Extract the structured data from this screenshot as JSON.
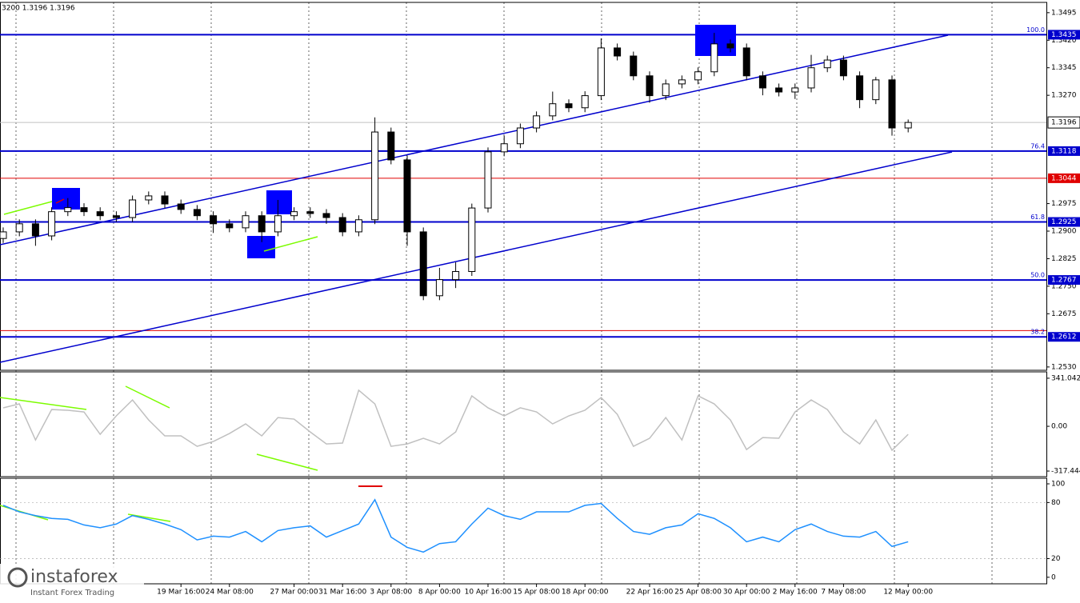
{
  "chart_data": [
    {
      "type": "candlestick",
      "title": "3200 1.3196 1.3196",
      "categories": [
        null,
        null,
        null,
        null,
        null,
        null,
        null,
        null,
        null,
        null,
        null,
        "19 Mar 16:00",
        null,
        null,
        "24 Mar 08:00",
        null,
        null,
        null,
        "27 Mar 00:00",
        null,
        null,
        "31 Mar 16:00",
        null,
        null,
        "3 Apr 08:00",
        null,
        null,
        "8 Apr 00:00",
        null,
        null,
        "10 Apr 16:00",
        null,
        null,
        "15 Apr 08:00",
        null,
        null,
        "18 Apr 00:00",
        null,
        null,
        null,
        "22 Apr 16:00",
        null,
        null,
        "25 Apr 08:00",
        null,
        null,
        "30 Apr 00:00",
        null,
        null,
        "2 May 16:00",
        null,
        null,
        "7 May 08:00",
        null,
        null,
        null,
        "12 May 00:00"
      ],
      "open": [
        1.288,
        1.2898,
        1.292,
        1.2887,
        1.2953,
        1.2964,
        1.2953,
        1.2942,
        1.2937,
        1.2985,
        1.2996,
        1.2974,
        1.2959,
        1.2942,
        1.292,
        1.2909,
        1.2942,
        1.2898,
        1.2942,
        1.2953,
        1.2948,
        1.2937,
        1.2898,
        1.2931,
        1.317,
        1.3094,
        1.2898,
        1.2724,
        1.2768,
        1.279,
        1.2963,
        1.3116,
        1.3138,
        1.3181,
        1.3214,
        1.3247,
        1.3236,
        1.3269,
        1.3399,
        1.3377,
        1.3323,
        1.3269,
        1.3301,
        1.3312,
        1.3334,
        1.341,
        1.3399,
        1.3323,
        1.329,
        1.3279,
        1.329,
        1.3345,
        1.3366,
        1.3323,
        1.3258,
        1.3312,
        1.3181
      ],
      "high": [
        1.291,
        1.2932,
        1.2932,
        1.2965,
        1.299,
        1.2976,
        1.2965,
        1.2954,
        1.2997,
        1.3008,
        1.3008,
        1.2986,
        1.2971,
        1.2954,
        1.2932,
        1.2954,
        1.2954,
        1.2985,
        1.2965,
        1.2965,
        1.296,
        1.2949,
        1.2943,
        1.321,
        1.3182,
        1.3106,
        1.291,
        1.28,
        1.2815,
        1.2975,
        1.3128,
        1.316,
        1.3193,
        1.3226,
        1.328,
        1.3259,
        1.3281,
        1.3425,
        1.3411,
        1.3389,
        1.3335,
        1.3313,
        1.3324,
        1.3346,
        1.344,
        1.3422,
        1.3411,
        1.3335,
        1.3302,
        1.3302,
        1.338,
        1.3378,
        1.3378,
        1.3335,
        1.332,
        1.3324,
        1.3204
      ],
      "low": [
        1.2868,
        1.2886,
        1.286,
        1.2875,
        1.2941,
        1.2941,
        1.293,
        1.2925,
        1.2925,
        1.2973,
        1.2962,
        1.2947,
        1.293,
        1.2895,
        1.2897,
        1.2897,
        1.287,
        1.2886,
        1.293,
        1.2936,
        1.292,
        1.2886,
        1.2886,
        1.2919,
        1.3082,
        1.286,
        1.2712,
        1.2712,
        1.2745,
        1.2778,
        1.2951,
        1.3104,
        1.3126,
        1.3169,
        1.3202,
        1.3224,
        1.3224,
        1.3257,
        1.3365,
        1.3311,
        1.325,
        1.3257,
        1.3289,
        1.33,
        1.3322,
        1.3387,
        1.3311,
        1.327,
        1.3267,
        1.326,
        1.3278,
        1.3333,
        1.3311,
        1.3235,
        1.3246,
        1.316,
        1.3169
      ],
      "close": [
        1.2898,
        1.292,
        1.2887,
        1.2953,
        1.2964,
        1.2953,
        1.2942,
        1.2937,
        1.2985,
        1.2996,
        1.2974,
        1.2959,
        1.2942,
        1.292,
        1.2909,
        1.2942,
        1.2898,
        1.2942,
        1.2953,
        1.2948,
        1.2937,
        1.2898,
        1.2931,
        1.317,
        1.3094,
        1.2898,
        1.2724,
        1.2768,
        1.279,
        1.2963,
        1.3116,
        1.3138,
        1.3181,
        1.3214,
        1.3247,
        1.3236,
        1.3269,
        1.3399,
        1.3377,
        1.3323,
        1.3269,
        1.3301,
        1.3312,
        1.3334,
        1.341,
        1.3399,
        1.3323,
        1.329,
        1.3279,
        1.329,
        1.3345,
        1.3366,
        1.3323,
        1.3258,
        1.3312,
        1.3181,
        1.3196
      ],
      "ylim": [
        1.2521,
        1.3523
      ],
      "yticks": [
        {
          "value": 1.3495,
          "label": "1.3495"
        },
        {
          "value": 1.342,
          "label": "1.3420"
        },
        {
          "value": 1.3345,
          "label": "1.3345"
        },
        {
          "value": 1.327,
          "label": "1.3270"
        },
        {
          "value": 1.2975,
          "label": "1.2975"
        },
        {
          "value": 1.29,
          "label": "1.2900"
        },
        {
          "value": 1.2825,
          "label": "1.2825"
        },
        {
          "value": 1.275,
          "label": "1.2750"
        },
        {
          "value": 1.2675,
          "label": "1.2675"
        },
        {
          "value": 1.253,
          "label": "1.2530"
        }
      ],
      "levels": [
        {
          "value": 1.3435,
          "color": "#0000cd",
          "fib": "100.0"
        },
        {
          "value": 1.3118,
          "color": "#0000cd",
          "fib": "76.4"
        },
        {
          "value": 1.3044,
          "color": "#e00000"
        },
        {
          "value": 1.2925,
          "color": "#0000cd",
          "fib": "61.8"
        },
        {
          "value": 1.2767,
          "color": "#0000cd",
          "fib": "50.0"
        },
        {
          "value": 1.2629,
          "color": "#e00000"
        },
        {
          "value": 1.2612,
          "color": "#0000cd",
          "fib": "38.2"
        }
      ],
      "last": 1.3196
    },
    {
      "type": "line",
      "series": [
        {
          "color": "#c0c0c0",
          "values": [
            131,
            159,
            -97,
            119,
            114,
            102,
            -57,
            74,
            187,
            45,
            -68,
            -68,
            -142,
            -108,
            -51,
            17,
            -68,
            62,
            51,
            -40,
            -125,
            -119,
            256,
            159,
            -142,
            -125,
            -85,
            -125,
            -40,
            216,
            131,
            74,
            131,
            102,
            17,
            74,
            114,
            204,
            85,
            -142,
            -85,
            62,
            -97,
            216,
            159,
            45,
            -165,
            -80,
            -85,
            102,
            187,
            119,
            -40,
            -125,
            45,
            -170,
            -57
          ]
        }
      ],
      "ylim": [
        -357,
        386
      ],
      "yticks": [
        341.0423,
        {
          "value": 0,
          "label": "0.00"
        },
        -317.444
      ]
    },
    {
      "type": "line",
      "series": [
        {
          "color": "#1e90ff",
          "values": [
            77,
            70,
            66,
            63,
            62,
            56,
            53,
            57,
            66,
            62,
            57,
            51,
            40,
            44,
            43,
            49,
            38,
            50,
            53,
            55,
            43,
            50,
            57,
            83,
            43,
            32,
            27,
            36,
            38,
            57,
            74,
            66,
            62,
            70,
            70,
            70,
            77,
            79,
            63,
            49,
            46,
            53,
            56,
            68,
            63,
            53,
            38,
            43,
            38,
            51,
            57,
            49,
            44,
            43,
            49,
            33,
            38
          ]
        }
      ],
      "ylim": [
        -7,
        106
      ],
      "yticks": [
        0,
        20,
        80,
        100
      ],
      "dashed_levels": [
        20,
        80
      ]
    }
  ],
  "watermark": {
    "name": "instaforex",
    "tagline": "Instant Forex Trading"
  }
}
